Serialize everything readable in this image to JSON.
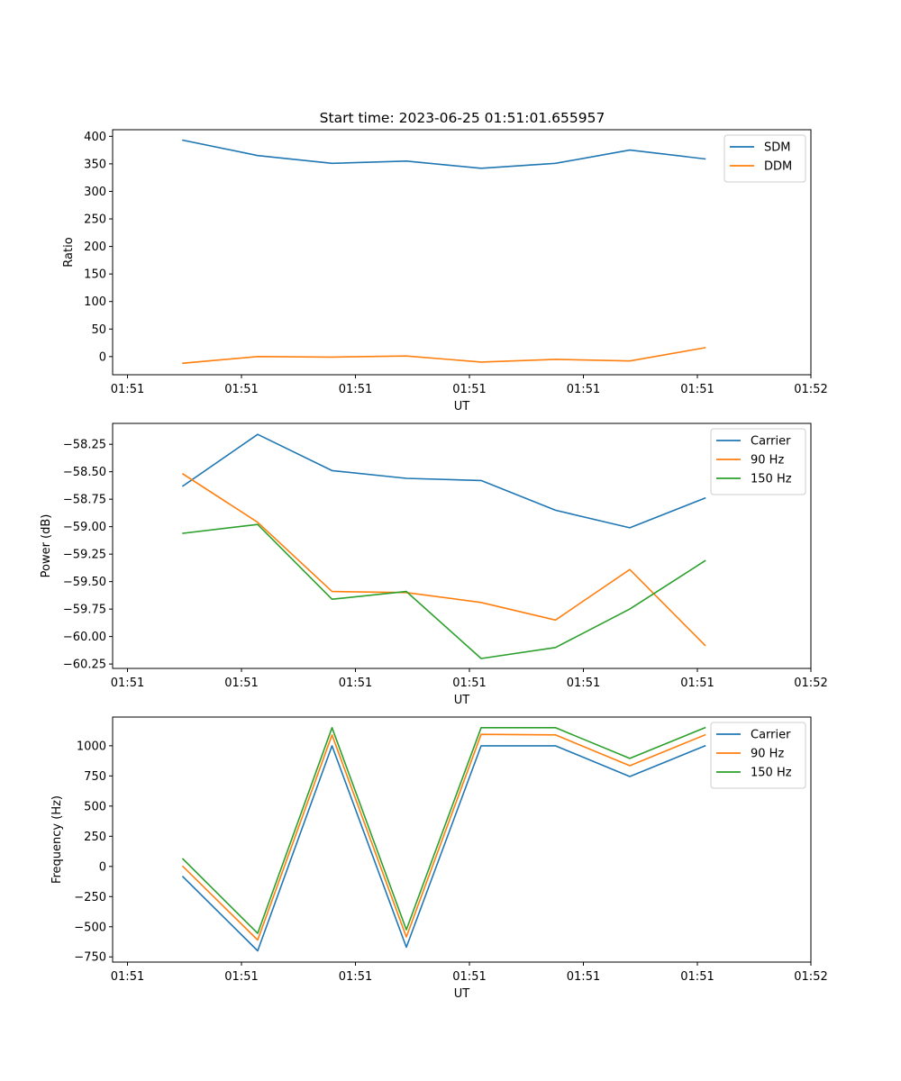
{
  "figure": {
    "title": "Start time: 2023-06-25 01:51:01.655957"
  },
  "chart_data": [
    {
      "type": "line",
      "title": "Start time: 2023-06-25 01:51:01.655957",
      "xlabel": "UT",
      "ylabel": "Ratio",
      "x_tick_labels": [
        "01:51",
        "01:51",
        "01:51",
        "01:51",
        "01:51",
        "01:51",
        "01:52"
      ],
      "y_ticks": [
        0,
        50,
        100,
        150,
        200,
        250,
        300,
        350,
        400
      ],
      "y_tick_labels": [
        "0",
        "50",
        "100",
        "150",
        "200",
        "250",
        "300",
        "350",
        "400"
      ],
      "ylim": [
        -33,
        412
      ],
      "grid": false,
      "legend": "top-right",
      "series": [
        {
          "name": "SDM",
          "color": "#1f77b4",
          "values": [
            393,
            365,
            351,
            355,
            342,
            351,
            375,
            359
          ]
        },
        {
          "name": "DDM",
          "color": "#ff7f0e",
          "values": [
            -12,
            0,
            -1,
            1,
            -10,
            -5,
            -8,
            16
          ]
        }
      ]
    },
    {
      "type": "line",
      "title": "",
      "xlabel": "UT",
      "ylabel": "Power (dB)",
      "x_tick_labels": [
        "01:51",
        "01:51",
        "01:51",
        "01:51",
        "01:51",
        "01:51",
        "01:52"
      ],
      "y_ticks": [
        -60.25,
        -60.0,
        -59.75,
        -59.5,
        -59.25,
        -59.0,
        -58.75,
        -58.5,
        -58.25
      ],
      "y_tick_labels": [
        "−60.25",
        "−60.00",
        "−59.75",
        "−59.50",
        "−59.25",
        "−59.00",
        "−58.75",
        "−58.50",
        "−58.25"
      ],
      "ylim": [
        -60.29,
        -58.06
      ],
      "grid": false,
      "legend": "top-right",
      "series": [
        {
          "name": "Carrier",
          "color": "#1f77b4",
          "values": [
            -58.63,
            -58.16,
            -58.49,
            -58.56,
            -58.58,
            -58.85,
            -59.01,
            -58.74
          ]
        },
        {
          "name": "90 Hz",
          "color": "#ff7f0e",
          "values": [
            -58.52,
            -58.96,
            -59.59,
            -59.6,
            -59.69,
            -59.85,
            -59.39,
            -60.08
          ]
        },
        {
          "name": "150 Hz",
          "color": "#2ca02c",
          "values": [
            -59.06,
            -58.98,
            -59.66,
            -59.59,
            -60.2,
            -60.1,
            -59.75,
            -59.31
          ]
        }
      ]
    },
    {
      "type": "line",
      "title": "",
      "xlabel": "UT",
      "ylabel": "Frequency (Hz)",
      "x_tick_labels": [
        "01:51",
        "01:51",
        "01:51",
        "01:51",
        "01:51",
        "01:51",
        "01:52"
      ],
      "y_ticks": [
        -750,
        -500,
        -250,
        0,
        250,
        500,
        750,
        1000
      ],
      "y_tick_labels": [
        "−750",
        "−500",
        "−250",
        "0",
        "250",
        "500",
        "750",
        "1000"
      ],
      "ylim": [
        -793,
        1238
      ],
      "grid": false,
      "legend": "top-right",
      "series": [
        {
          "name": "Carrier",
          "color": "#1f77b4",
          "values": [
            -85,
            -700,
            1000,
            -670,
            1000,
            1000,
            745,
            1000
          ]
        },
        {
          "name": "90 Hz",
          "color": "#ff7f0e",
          "values": [
            0,
            -610,
            1090,
            -585,
            1095,
            1090,
            835,
            1090
          ]
        },
        {
          "name": "150 Hz",
          "color": "#2ca02c",
          "values": [
            62,
            -555,
            1150,
            -525,
            1150,
            1150,
            895,
            1150
          ]
        }
      ]
    }
  ]
}
